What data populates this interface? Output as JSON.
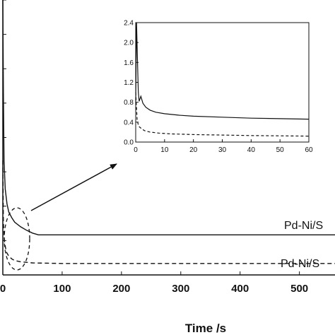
{
  "chart_data": [
    {
      "id": "main",
      "type": "line",
      "xlabel": "Time /s",
      "ylabel": "",
      "xlim": [
        0,
        560
      ],
      "ylim": [
        0,
        2.4
      ],
      "xticks": [
        0,
        100,
        200,
        300,
        400,
        500
      ],
      "xtick_labels": [
        "0",
        "100",
        "200",
        "300",
        "400",
        "500"
      ],
      "yticks": [
        0.3,
        0.6,
        0.9,
        1.2,
        1.5,
        1.8,
        2.1,
        2.4
      ],
      "series": [
        {
          "name": "Pd-Ni/S",
          "line_style": "solid",
          "x": [
            0,
            1,
            2,
            4,
            7,
            10,
            15,
            20,
            30,
            40,
            50,
            60,
            100,
            200,
            300,
            400,
            500,
            560
          ],
          "y": [
            2.4,
            1.6,
            1.0,
            0.75,
            0.62,
            0.55,
            0.5,
            0.46,
            0.42,
            0.39,
            0.365,
            0.35,
            0.35,
            0.35,
            0.35,
            0.35,
            0.35,
            0.35
          ]
        },
        {
          "name": "Pd-Ni/S",
          "line_style": "dashed",
          "x": [
            0,
            1,
            3,
            6,
            10,
            15,
            20,
            30,
            40,
            50,
            100,
            200,
            300,
            400,
            500,
            560
          ],
          "y": [
            1.0,
            0.45,
            0.28,
            0.2,
            0.165,
            0.14,
            0.125,
            0.115,
            0.11,
            0.105,
            0.1,
            0.1,
            0.1,
            0.1,
            0.1,
            0.1
          ]
        }
      ]
    },
    {
      "id": "inset",
      "type": "line",
      "xlim": [
        0,
        60
      ],
      "ylim": [
        0,
        2.4
      ],
      "xticks": [
        0,
        10,
        20,
        30,
        40,
        50,
        60
      ],
      "xtick_labels": [
        "0",
        "10",
        "20",
        "30",
        "40",
        "50",
        "60"
      ],
      "yticks": [
        0.0,
        0.4,
        0.8,
        1.2,
        1.6,
        2.0,
        2.4
      ],
      "ytick_labels": [
        "0.0",
        "0.4",
        "0.8",
        "1.2",
        "1.6",
        "2.0",
        "2.4"
      ],
      "series": [
        {
          "line_style": "solid",
          "x": [
            0,
            0.3,
            0.6,
            0.9,
            1.2,
            1.8,
            2.5,
            3.5,
            5,
            7,
            10,
            15,
            20,
            30,
            40,
            50,
            60
          ],
          "y": [
            0.8,
            2.4,
            1.7,
            1.0,
            0.82,
            0.92,
            0.78,
            0.7,
            0.64,
            0.6,
            0.57,
            0.54,
            0.52,
            0.5,
            0.48,
            0.47,
            0.46
          ]
        },
        {
          "line_style": "dashed",
          "x": [
            0,
            0.5,
            1,
            2,
            3,
            5,
            8,
            12,
            20,
            30,
            40,
            50,
            60
          ],
          "y": [
            1.0,
            0.45,
            0.32,
            0.27,
            0.23,
            0.2,
            0.18,
            0.165,
            0.15,
            0.14,
            0.13,
            0.125,
            0.12
          ]
        }
      ]
    }
  ]
}
